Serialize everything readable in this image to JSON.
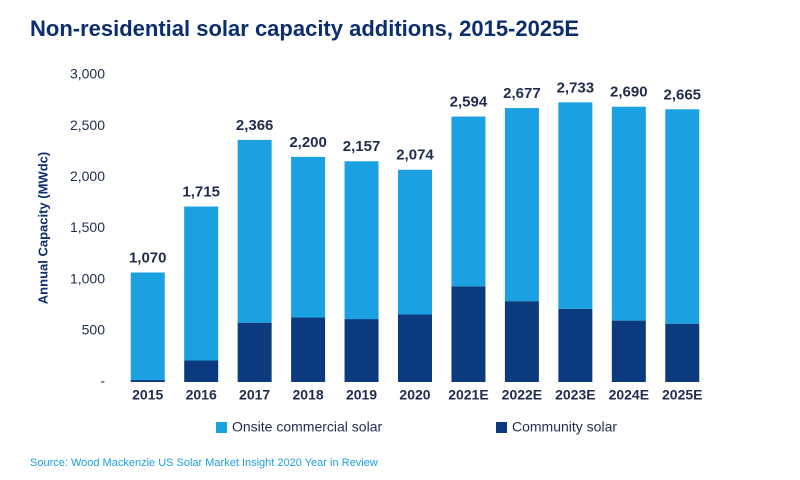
{
  "chart_data": {
    "type": "stacked-bar",
    "title": "Non-residential solar capacity additions, 2015-2025E",
    "y_label": "Annual Capacity (MWdc)",
    "source": "Source: Wood Mackenzie US Solar Market Insight 2020 Year in Review",
    "categories": [
      "2015",
      "2016",
      "2017",
      "2018",
      "2019",
      "2020",
      "2021E",
      "2022E",
      "2023E",
      "2024E",
      "2025E"
    ],
    "series": [
      {
        "name": "Onsite commercial solar",
        "color": "#1ba1e2",
        "values": [
          1050,
          1505,
          1786,
          1570,
          1542,
          1414,
          1659,
          1887,
          2018,
          2090,
          2095
        ]
      },
      {
        "name": "Community solar",
        "color": "#0b3a7e",
        "values": [
          20,
          210,
          580,
          630,
          615,
          660,
          935,
          790,
          715,
          600,
          570
        ]
      }
    ],
    "totals": [
      1070,
      1715,
      2366,
      2200,
      2157,
      2074,
      2594,
      2677,
      2733,
      2690,
      2665
    ],
    "total_labels": [
      "1,070",
      "1,715",
      "2,366",
      "2,200",
      "2,157",
      "2,074",
      "2,594",
      "2,677",
      "2,733",
      "2,690",
      "2,665"
    ],
    "ylim": [
      0,
      3000
    ],
    "yticks": [
      {
        "value": 0,
        "label": "-"
      },
      500,
      {
        "value": 1000,
        "label": "1,000"
      },
      {
        "value": 1500,
        "label": "1,500"
      },
      {
        "value": 2000,
        "label": "2,000"
      },
      {
        "value": 2500,
        "label": "2,500"
      },
      {
        "value": 3000,
        "label": "3,000"
      }
    ]
  }
}
